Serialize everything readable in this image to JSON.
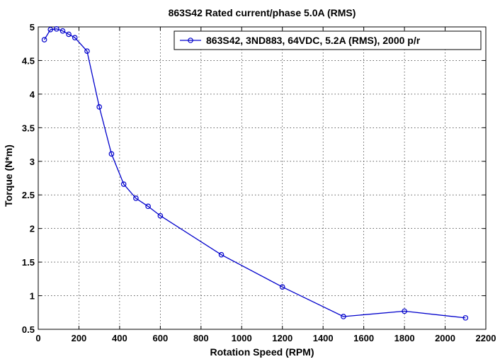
{
  "chart_data": {
    "type": "line",
    "title": "863S42 Rated current/phase 5.0A (RMS)",
    "xlabel": "Rotation Speed (RPM)",
    "ylabel": "Torque (N*m)",
    "xlim": [
      0,
      2200
    ],
    "ylim": [
      0.5,
      5
    ],
    "xticks": [
      0,
      200,
      400,
      600,
      800,
      1000,
      1200,
      1400,
      1600,
      1800,
      2000,
      2200
    ],
    "yticks": [
      0.5,
      1,
      1.5,
      2,
      2.5,
      3,
      3.5,
      4,
      4.5,
      5
    ],
    "grid": true,
    "legend_position": "top-right",
    "series": [
      {
        "name": "863S42, 3ND883, 64VDC, 5.2A (RMS), 2000 p/r",
        "color": "#0000cc",
        "marker": "circle",
        "x": [
          30,
          60,
          90,
          120,
          150,
          180,
          240,
          300,
          360,
          420,
          480,
          540,
          600,
          900,
          1200,
          1500,
          1800,
          2100
        ],
        "y": [
          4.81,
          4.96,
          4.97,
          4.94,
          4.89,
          4.84,
          4.64,
          3.81,
          3.11,
          2.66,
          2.45,
          2.33,
          2.19,
          1.61,
          1.13,
          0.69,
          0.77,
          0.67
        ]
      }
    ]
  }
}
